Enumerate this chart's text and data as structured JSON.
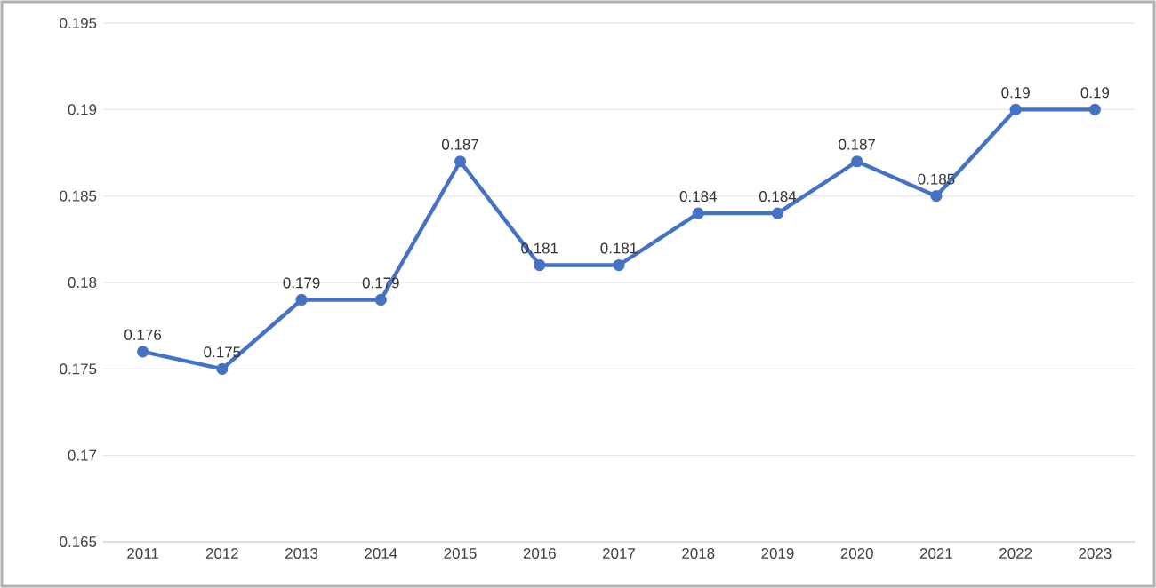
{
  "chart_data": {
    "type": "line",
    "categories": [
      "2011",
      "2012",
      "2013",
      "2014",
      "2015",
      "2016",
      "2017",
      "2018",
      "2019",
      "2020",
      "2021",
      "2022",
      "2023"
    ],
    "series": [
      {
        "color": "#4472c4",
        "values": [
          0.176,
          0.175,
          0.179,
          0.179,
          0.187,
          0.181,
          0.181,
          0.184,
          0.184,
          0.187,
          0.185,
          0.19,
          0.19
        ]
      }
    ],
    "ylim": [
      0.165,
      0.195
    ],
    "yticks": [
      0.165,
      0.17,
      0.175,
      0.18,
      0.185,
      0.19,
      0.195
    ],
    "grid": "y",
    "marker": "circle",
    "line_style": "solid",
    "data_labels": true
  }
}
